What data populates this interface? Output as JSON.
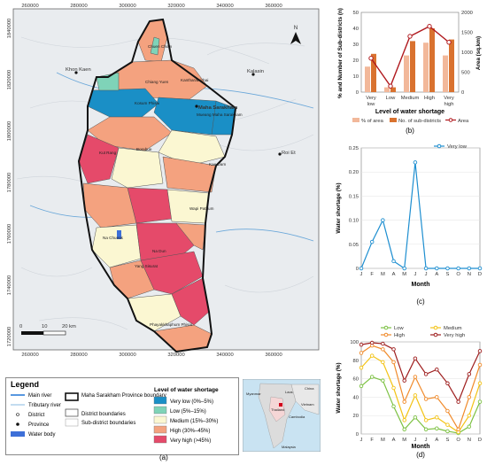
{
  "map": {
    "coords_top": [
      "260000",
      "280000",
      "300000",
      "320000",
      "340000",
      "360000"
    ],
    "coords_bottom": [
      "260000",
      "280000",
      "300000",
      "320000",
      "340000",
      "360000"
    ],
    "coords_left": [
      "1840000",
      "1820000",
      "1800000",
      "1780000",
      "1760000",
      "1740000",
      "1720000"
    ],
    "north_label": "N",
    "cities": [
      "Khon Kaen",
      "Kalasin",
      "Roi Et",
      "Maha Sarakham"
    ],
    "districts": [
      "Chuen Chom",
      "Kosum Phisai",
      "Kantharawichai",
      "Mueang Maha Sarakham",
      "Chiang Yuen",
      "Borabue",
      "Kae Dam",
      "Kut Rang",
      "Wapi Pathum",
      "Na Chueak",
      "Na Dun",
      "Yang Sisurat",
      "Phayakkhaphum Phisai"
    ],
    "scalebar": {
      "labels": [
        "0",
        "10",
        "20 km"
      ]
    },
    "panel_label": "(a)"
  },
  "legend": {
    "title": "Legend",
    "items": [
      "Main river",
      "Tributary river",
      "District",
      "Province",
      "Water body"
    ],
    "boundary_items": [
      "Maha Sarakham Province boundary",
      "District boundaries",
      "Sub-district boundaries"
    ],
    "level_title": "Level of water shortage",
    "levels": [
      {
        "label": "Very low (0%–5%)",
        "color": "#1a8fc6"
      },
      {
        "label": "Low (5%–15%)",
        "color": "#7fd3b8"
      },
      {
        "label": "Medium (15%–30%)",
        "color": "#fbf7d2"
      },
      {
        "label": "High (30%–45%)",
        "color": "#f4a27f"
      },
      {
        "label": "Very high (>45%)",
        "color": "#e54a6a"
      }
    ]
  },
  "inset": {
    "labels": [
      "Laos",
      "Myanmar",
      "Thailand",
      "Cambodia",
      "China",
      "Vietnam",
      "Malaysia"
    ]
  },
  "chart_data": [
    {
      "type": "bar",
      "panel": "(b)",
      "categories": [
        "Very low",
        "Low",
        "Medium",
        "High",
        "Very high"
      ],
      "xlabel": "Level of water shortage",
      "ylabel": "% and Number of Sub-districts (n)",
      "ylabel_right": "Area (sq.km)",
      "ylim": [
        0,
        50
      ],
      "ylim_right": [
        0,
        2000
      ],
      "yticks": [
        "0",
        "10",
        "20",
        "30",
        "40",
        "50"
      ],
      "yticks_right": [
        "0",
        "500",
        "1000",
        "1500",
        "2000"
      ],
      "series": [
        {
          "name": "% of area",
          "values": [
            16,
            3,
            23,
            31,
            23
          ],
          "color": "#f2b89a"
        },
        {
          "name": "No. of sub-districts",
          "values": [
            24,
            3,
            32,
            40,
            33
          ],
          "color": "#d9722f"
        },
        {
          "name": "Area",
          "values": [
            850,
            150,
            1400,
            1650,
            1250
          ],
          "color": "#b0191e"
        }
      ]
    },
    {
      "type": "line",
      "panel": "(c)",
      "x": [
        "J",
        "F",
        "M",
        "A",
        "M",
        "J",
        "J",
        "A",
        "S",
        "O",
        "N",
        "D"
      ],
      "xlabel": "Month",
      "ylabel": "Water shortage (%)",
      "ylim": [
        0,
        0.25
      ],
      "yticks": [
        "0",
        "0.05",
        "0.10",
        "0.15",
        "0.20",
        "0.25"
      ],
      "series": [
        {
          "name": "Very low",
          "values": [
            0,
            0.055,
            0.1,
            0.015,
            0,
            0.22,
            0,
            0,
            0,
            0,
            0,
            0
          ],
          "color": "#1d8ed0"
        }
      ]
    },
    {
      "type": "line",
      "panel": "(d)",
      "x": [
        "J",
        "F",
        "M",
        "A",
        "M",
        "J",
        "J",
        "A",
        "S",
        "O",
        "N",
        "D"
      ],
      "xlabel": "Month",
      "ylabel": "Water shortage (%)",
      "ylim": [
        0,
        100
      ],
      "yticks": [
        "0",
        "20",
        "40",
        "60",
        "80",
        "100"
      ],
      "series": [
        {
          "name": "Low",
          "values": [
            52,
            62,
            58,
            30,
            5,
            18,
            5,
            6,
            3,
            1,
            8,
            35
          ],
          "color": "#7cc142"
        },
        {
          "name": "Medium",
          "values": [
            72,
            85,
            78,
            50,
            15,
            42,
            15,
            18,
            10,
            2,
            20,
            55
          ],
          "color": "#f3c316"
        },
        {
          "name": "High",
          "values": [
            88,
            96,
            92,
            78,
            35,
            62,
            38,
            40,
            25,
            5,
            40,
            75
          ],
          "color": "#f08a2a"
        },
        {
          "name": "Very high",
          "values": [
            97,
            99,
            98,
            92,
            58,
            82,
            65,
            70,
            55,
            35,
            65,
            90
          ],
          "color": "#9e1e1e"
        }
      ]
    }
  ]
}
